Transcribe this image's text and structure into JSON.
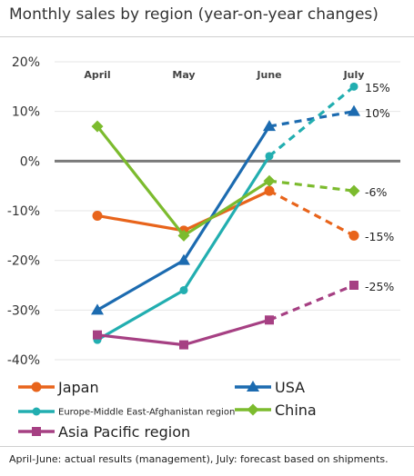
{
  "chart_data": {
    "type": "line",
    "title": "Monthly sales by region (year-on-year changes)",
    "categories": [
      "April",
      "May",
      "June",
      "July"
    ],
    "ylim": [
      -40,
      20
    ],
    "yticks": [
      "20%",
      "10%",
      "0%",
      "-10%",
      "-20%",
      "-30%",
      "-40%"
    ],
    "grid": true,
    "legend_position": "bottom",
    "forecast_note": "July values are forecasts (dashed lines)",
    "series": [
      {
        "name": "Japan",
        "color": "#e8641b",
        "marker": "circle",
        "values": [
          -11,
          -14,
          -6,
          -15
        ],
        "end_label": "-15%"
      },
      {
        "name": "USA",
        "color": "#1c6bb0",
        "marker": "triangle",
        "values": [
          -30,
          -20,
          7,
          10
        ],
        "end_label": "10%"
      },
      {
        "name": "Europe-Middle East-Afghanistan region",
        "color": "#22aeb0",
        "marker": "dot",
        "values": [
          -36,
          -26,
          1,
          15
        ],
        "end_label": "15%"
      },
      {
        "name": "China",
        "color": "#7cbb2e",
        "marker": "diamond",
        "values": [
          7,
          -15,
          -4,
          -6
        ],
        "end_label": "-6%"
      },
      {
        "name": "Asia Pacific region",
        "color": "#a64083",
        "marker": "square",
        "values": [
          -35,
          -37,
          -32,
          -25
        ],
        "end_label": "-25%"
      }
    ]
  },
  "footnote": "April-June: actual results (management), July: forecast based on shipments."
}
